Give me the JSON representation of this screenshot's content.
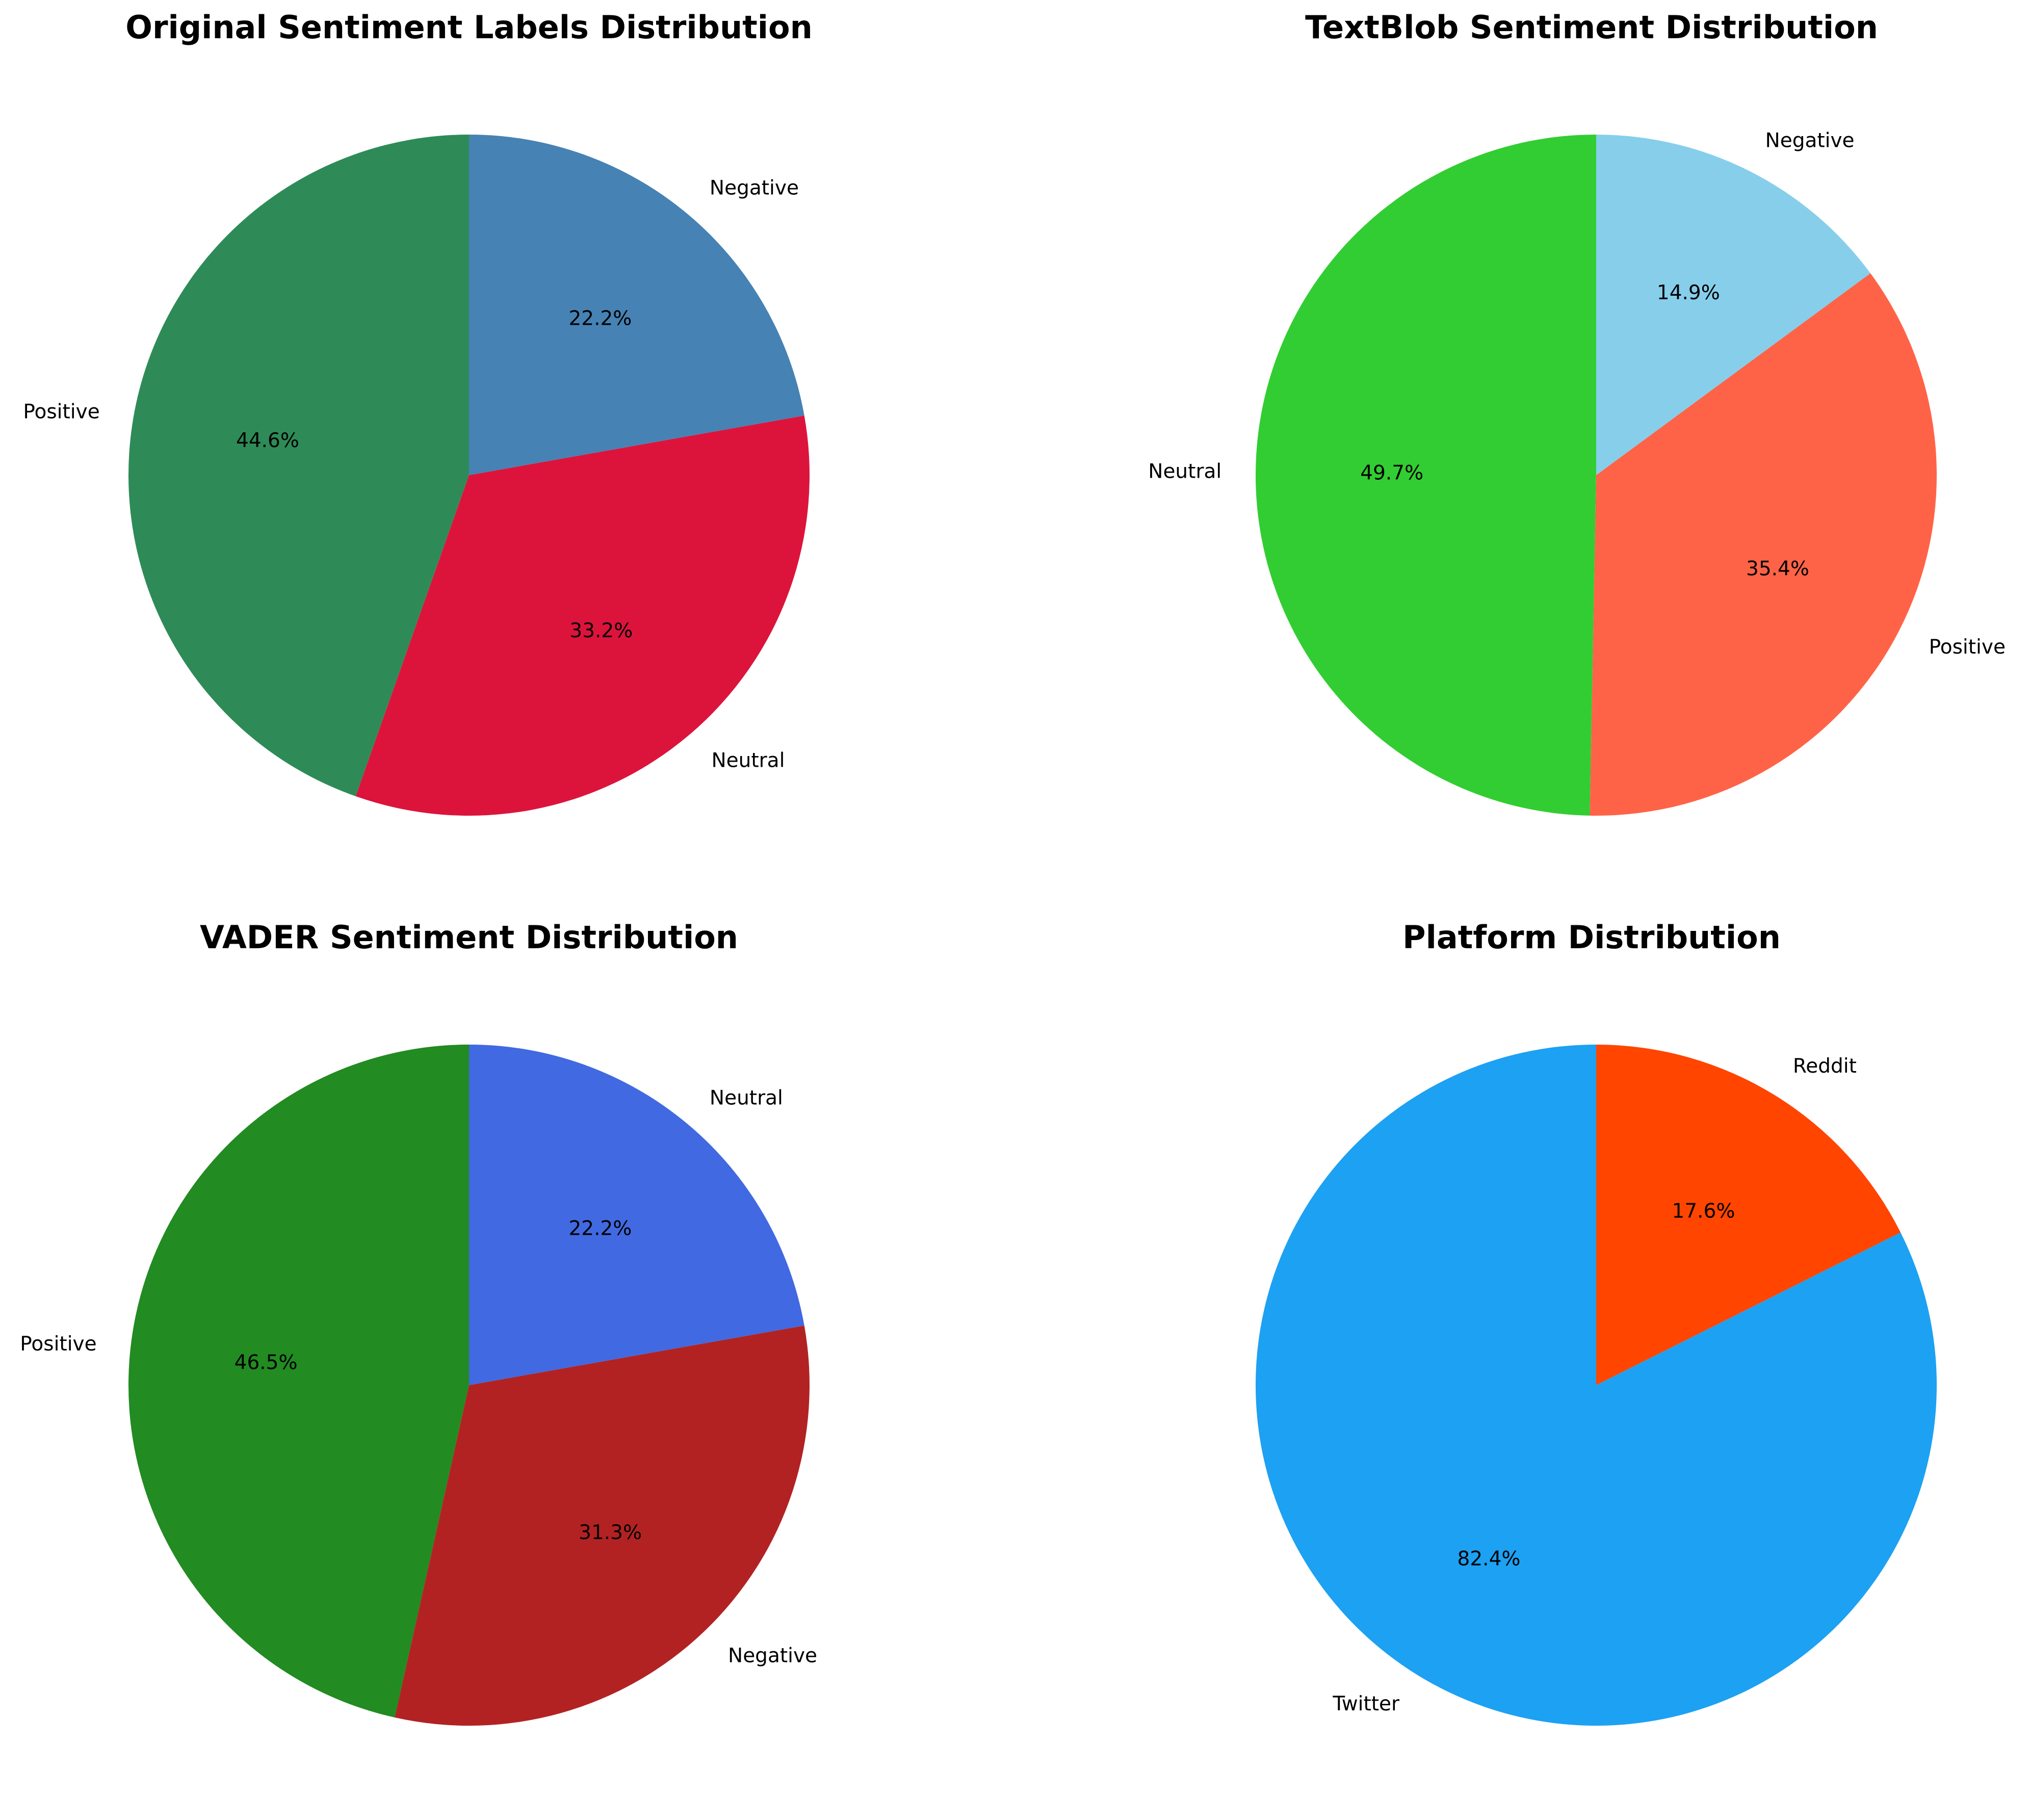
{
  "chart_data": [
    {
      "type": "pie",
      "title": "Original Sentiment Labels Distribution",
      "start_angle": 90,
      "slices": [
        {
          "label": "Positive",
          "value": 44.6,
          "color": "#2e8b57"
        },
        {
          "label": "Neutral",
          "value": 33.2,
          "color": "#dc143c"
        },
        {
          "label": "Negative",
          "value": 22.2,
          "color": "#4682b4"
        }
      ]
    },
    {
      "type": "pie",
      "title": "TextBlob Sentiment Distribution",
      "start_angle": 90,
      "slices": [
        {
          "label": "Neutral",
          "value": 49.7,
          "color": "#32cd32"
        },
        {
          "label": "Positive",
          "value": 35.4,
          "color": "#ff6347"
        },
        {
          "label": "Negative",
          "value": 14.9,
          "color": "#87ceeb"
        }
      ]
    },
    {
      "type": "pie",
      "title": "VADER Sentiment Distribution",
      "start_angle": 90,
      "slices": [
        {
          "label": "Positive",
          "value": 46.5,
          "color": "#228b22"
        },
        {
          "label": "Negative",
          "value": 31.3,
          "color": "#b22222"
        },
        {
          "label": "Neutral",
          "value": 22.2,
          "color": "#4169e1"
        }
      ]
    },
    {
      "type": "pie",
      "title": "Platform Distribution",
      "start_angle": 90,
      "slices": [
        {
          "label": "Twitter",
          "value": 82.4,
          "color": "#1da1f2"
        },
        {
          "label": "Reddit",
          "value": 17.6,
          "color": "#ff4500"
        }
      ]
    }
  ]
}
